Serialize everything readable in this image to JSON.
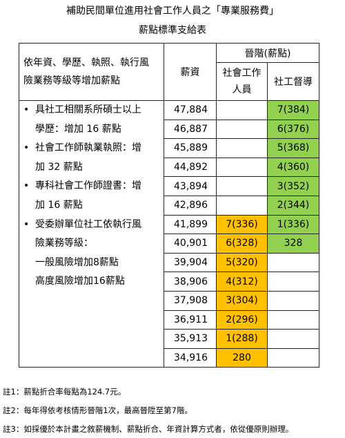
{
  "header": {
    "title": "補助民間單位進用社會工作人員之「專業服務費」",
    "subtitle": "薪點標準支給表"
  },
  "table": {
    "head": {
      "criteria": [
        "依年資、學歷、執照、執行風",
        "險業務等級等增加薪點"
      ],
      "salary": "薪資",
      "promotion": "晉階(薪點)",
      "social_worker": [
        "社會工作",
        "人員"
      ],
      "supervisor": "社工督導"
    },
    "criteria": [
      [
        "具社工相關系所碩士以上",
        "學歷：增加 16 薪點"
      ],
      [
        "社會工作師執業執照：增",
        "加 32 薪點"
      ],
      [
        "專科社會工作師證書：增",
        "加 16 薪點"
      ],
      [
        "受委辦單位社工依執行風",
        "險業務等級：",
        "一般風險增加8薪點",
        "高度風險增加16薪點"
      ]
    ],
    "rows": [
      {
        "salary": "47,884",
        "supervisor": "7(384)"
      },
      {
        "salary": "46,887",
        "supervisor": "6(376)"
      },
      {
        "salary": "45,889",
        "supervisor": "5(368)"
      },
      {
        "salary": "44,892",
        "supervisor": "4(360)"
      },
      {
        "salary": "43,894",
        "supervisor": "3(352)"
      },
      {
        "salary": "42,896",
        "supervisor": "2(344)"
      },
      {
        "salary": "41,899",
        "social_worker": "7(336)",
        "supervisor": "1(336)"
      },
      {
        "salary": "40,901",
        "social_worker": "6(328)",
        "supervisor": "328"
      },
      {
        "salary": "39,904",
        "social_worker": "5(320)"
      },
      {
        "salary": "38,906",
        "social_worker": "4(312)"
      },
      {
        "salary": "37,908",
        "social_worker": "3(304)"
      },
      {
        "salary": "36,911",
        "social_worker": "2(296)"
      },
      {
        "salary": "35,913",
        "social_worker": "1(288)"
      },
      {
        "salary": "34,916",
        "social_worker": "280"
      }
    ]
  },
  "notes": [
    "註1：薪點折合率每點為124.7元。",
    "註2：每年得依考核情形晉階1次，最高晉陞至第7階。",
    "註3：如採優於本計畫之敘薪機制、薪點折合、年資計算方式者，依從優原則辦理。"
  ]
}
